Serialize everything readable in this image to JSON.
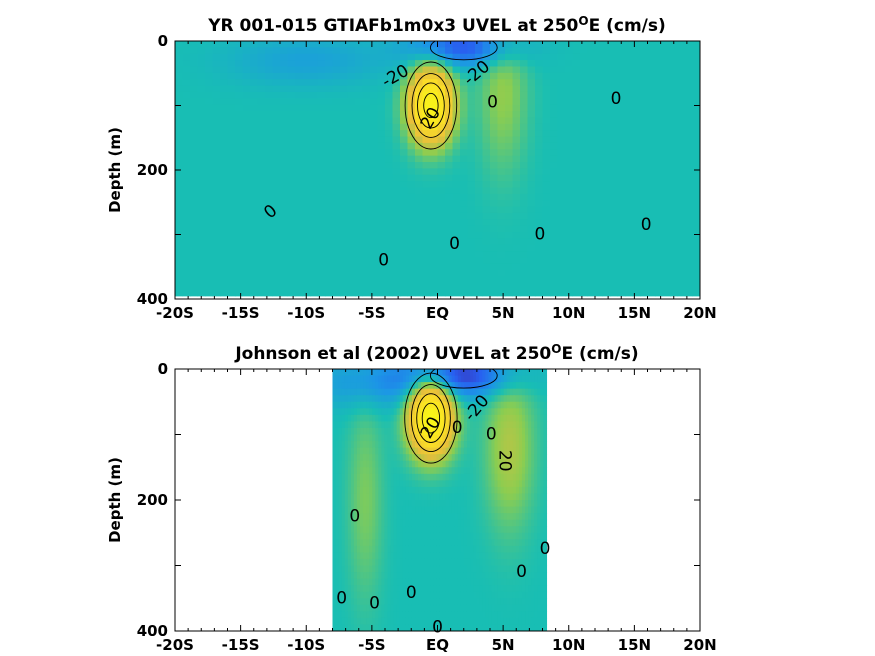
{
  "chart_data": [
    {
      "type": "heatmap",
      "title": {
        "prefix": "YR 001-015 GTIAFb1m0x3 UVEL at 250",
        "sup": "O",
        "suffix": "E (cm/s)"
      },
      "ylabel": "Depth (m)",
      "xlim": [
        -20,
        20
      ],
      "ylim": [
        0,
        400
      ],
      "y_reversed": true,
      "x_ticks": [
        {
          "value": -20,
          "label": "-20S"
        },
        {
          "value": -15,
          "label": "-15S"
        },
        {
          "value": -10,
          "label": "-10S"
        },
        {
          "value": -5,
          "label": "-5S"
        },
        {
          "value": 0,
          "label": "EQ"
        },
        {
          "value": 5,
          "label": "5N"
        },
        {
          "value": 10,
          "label": "10N"
        },
        {
          "value": 15,
          "label": "15N"
        },
        {
          "value": 20,
          "label": "20N"
        }
      ],
      "y_ticks": [
        {
          "value": 0,
          "label": "0"
        },
        {
          "value": 200,
          "label": "200"
        },
        {
          "value": 400,
          "label": "400"
        }
      ],
      "data_extent": {
        "lat": [
          -20,
          20
        ],
        "depth": [
          0,
          395
        ]
      },
      "features": [
        {
          "name": "background",
          "lat": 0,
          "depth": 200,
          "value": 0
        },
        {
          "name": "undercurrent",
          "lat": -0.5,
          "depth": 100,
          "value": 90
        },
        {
          "name": "sec-west",
          "lat": -10,
          "depth": 30,
          "value": -10
        },
        {
          "name": "sec-east",
          "lat": 2,
          "depth": 10,
          "value": -30
        },
        {
          "name": "necc",
          "lat": 5,
          "depth": 80,
          "value": 15
        }
      ],
      "contour_labels": [
        {
          "text": "-20",
          "lat": -3.2,
          "depth": 55,
          "rotate": -30
        },
        {
          "text": "-20",
          "lat": 3.0,
          "depth": 50,
          "rotate": -40
        },
        {
          "text": "0",
          "lat": 4.2,
          "depth": 95,
          "rotate": 0
        },
        {
          "text": "0",
          "lat": 13.6,
          "depth": 90,
          "rotate": 0
        },
        {
          "text": "0",
          "lat": -12.7,
          "depth": 265,
          "rotate": -40
        },
        {
          "text": "0",
          "lat": 1.3,
          "depth": 315,
          "rotate": 0
        },
        {
          "text": "0",
          "lat": 7.8,
          "depth": 300,
          "rotate": 0
        },
        {
          "text": "0",
          "lat": 15.9,
          "depth": 285,
          "rotate": 0
        },
        {
          "text": "0",
          "lat": -4.1,
          "depth": 340,
          "rotate": 0
        },
        {
          "text": "20",
          "lat": -0.5,
          "depth": 120,
          "rotate": -60
        }
      ]
    },
    {
      "type": "heatmap",
      "title": {
        "prefix": "Johnson et al (2002) UVEL at 250",
        "sup": "O",
        "suffix": "E (cm/s)"
      },
      "ylabel": "Depth (m)",
      "xlim": [
        -20,
        20
      ],
      "ylim": [
        0,
        400
      ],
      "y_reversed": true,
      "x_ticks": [
        {
          "value": -20,
          "label": "-20S"
        },
        {
          "value": -15,
          "label": "-15S"
        },
        {
          "value": -10,
          "label": "-10S"
        },
        {
          "value": -5,
          "label": "-5S"
        },
        {
          "value": 0,
          "label": "EQ"
        },
        {
          "value": 5,
          "label": "5N"
        },
        {
          "value": 10,
          "label": "10N"
        },
        {
          "value": 15,
          "label": "15N"
        },
        {
          "value": 20,
          "label": "20N"
        }
      ],
      "y_ticks": [
        {
          "value": 0,
          "label": "0"
        },
        {
          "value": 200,
          "label": "200"
        },
        {
          "value": 400,
          "label": "400"
        }
      ],
      "data_extent": {
        "lat": [
          -8,
          8.3
        ],
        "depth": [
          0,
          400
        ]
      },
      "features": [
        {
          "name": "background",
          "lat": 0,
          "depth": 200,
          "value": 0
        },
        {
          "name": "undercurrent",
          "lat": -0.5,
          "depth": 75,
          "value": 95
        },
        {
          "name": "sec-west",
          "lat": -4,
          "depth": 20,
          "value": -15
        },
        {
          "name": "sec-east",
          "lat": 2,
          "depth": 10,
          "value": -30
        },
        {
          "name": "necc",
          "lat": 5.5,
          "depth": 120,
          "value": 20
        },
        {
          "name": "ssc-south",
          "lat": -5.5,
          "depth": 200,
          "value": 12
        }
      ],
      "contour_labels": [
        {
          "text": "-20",
          "lat": 3.0,
          "depth": 60,
          "rotate": -50
        },
        {
          "text": "0",
          "lat": 1.5,
          "depth": 90,
          "rotate": 0
        },
        {
          "text": "0",
          "lat": 4.1,
          "depth": 100,
          "rotate": 0
        },
        {
          "text": "20",
          "lat": 5.1,
          "depth": 140,
          "rotate": 90
        },
        {
          "text": "20",
          "lat": -0.5,
          "depth": 90,
          "rotate": -60
        },
        {
          "text": "0",
          "lat": -6.3,
          "depth": 225,
          "rotate": 0
        },
        {
          "text": "0",
          "lat": 8.2,
          "depth": 275,
          "rotate": 0
        },
        {
          "text": "0",
          "lat": 6.4,
          "depth": 310,
          "rotate": 0
        },
        {
          "text": "0",
          "lat": -7.3,
          "depth": 350,
          "rotate": 0
        },
        {
          "text": "0",
          "lat": -4.8,
          "depth": 358,
          "rotate": 0
        },
        {
          "text": "0",
          "lat": -2.0,
          "depth": 342,
          "rotate": 0
        },
        {
          "text": "0",
          "lat": 0.0,
          "depth": 395,
          "rotate": 0
        }
      ]
    }
  ]
}
